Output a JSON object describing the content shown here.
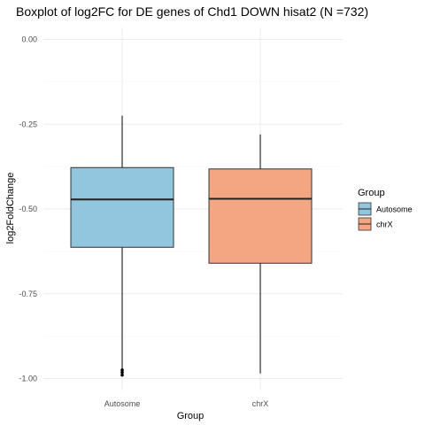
{
  "chart_data": {
    "type": "boxplot",
    "title": "Boxplot of log2FC for DE genes of Chd1 DOWN hisat2 (N =732)",
    "xlabel": "Group",
    "ylabel": "log2FoldChange",
    "ylim": [
      -1.05,
      0.05
    ],
    "yticks": [
      0.0,
      -0.25,
      -0.5,
      -0.75,
      -1.0
    ],
    "ytick_labels": [
      "0.00",
      "-0.25",
      "-0.50",
      "-0.75",
      "-1.00"
    ],
    "grid": true,
    "legend": {
      "title": "Group",
      "position": "right"
    },
    "categories": [
      "Autosome",
      "chrX"
    ],
    "series": [
      {
        "name": "Autosome",
        "color": "#92c5de",
        "whisker_high": -0.225,
        "q3": -0.378,
        "median": -0.472,
        "q1": -0.613,
        "whisker_low": -0.975,
        "outliers": [
          -0.975,
          -0.982,
          -0.99
        ]
      },
      {
        "name": "chrX",
        "color": "#f4a582",
        "whisker_high": -0.28,
        "q3": -0.382,
        "median": -0.47,
        "q1": -0.66,
        "whisker_low": -0.985,
        "outliers": []
      }
    ]
  }
}
